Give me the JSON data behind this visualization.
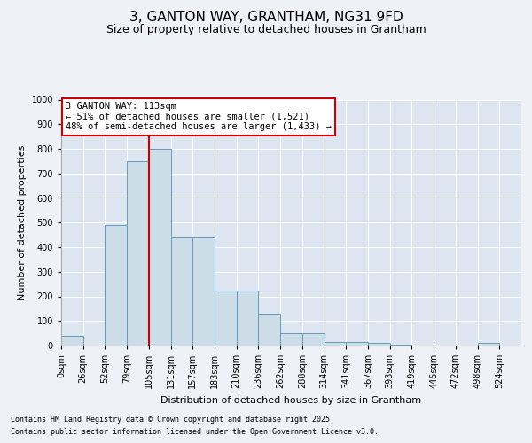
{
  "title": "3, GANTON WAY, GRANTHAM, NG31 9FD",
  "subtitle": "Size of property relative to detached houses in Grantham",
  "xlabel": "Distribution of detached houses by size in Grantham",
  "ylabel": "Number of detached properties",
  "bin_labels": [
    "0sqm",
    "26sqm",
    "52sqm",
    "79sqm",
    "105sqm",
    "131sqm",
    "157sqm",
    "183sqm",
    "210sqm",
    "236sqm",
    "262sqm",
    "288sqm",
    "314sqm",
    "341sqm",
    "367sqm",
    "393sqm",
    "419sqm",
    "445sqm",
    "472sqm",
    "498sqm",
    "524sqm"
  ],
  "bar_heights": [
    40,
    0,
    490,
    750,
    800,
    440,
    440,
    225,
    225,
    130,
    50,
    50,
    15,
    15,
    10,
    5,
    0,
    0,
    0,
    10,
    0
  ],
  "bar_color": "#ccdde8",
  "bar_edge_color": "#6699bb",
  "vline_x": 4,
  "vline_color": "#cc0000",
  "annotation_text": "3 GANTON WAY: 113sqm\n← 51% of detached houses are smaller (1,521)\n48% of semi-detached houses are larger (1,433) →",
  "annotation_box_color": "#ffffff",
  "annotation_box_edge_color": "#cc0000",
  "ylim": [
    0,
    1000
  ],
  "yticks": [
    0,
    100,
    200,
    300,
    400,
    500,
    600,
    700,
    800,
    900,
    1000
  ],
  "footer_line1": "Contains HM Land Registry data © Crown copyright and database right 2025.",
  "footer_line2": "Contains public sector information licensed under the Open Government Licence v3.0.",
  "bg_color": "#eef2f7",
  "plot_bg_color": "#dde6f0",
  "title_fontsize": 11,
  "subtitle_fontsize": 9,
  "axis_label_fontsize": 8,
  "tick_fontsize": 7,
  "annotation_fontsize": 7.5,
  "footer_fontsize": 6
}
